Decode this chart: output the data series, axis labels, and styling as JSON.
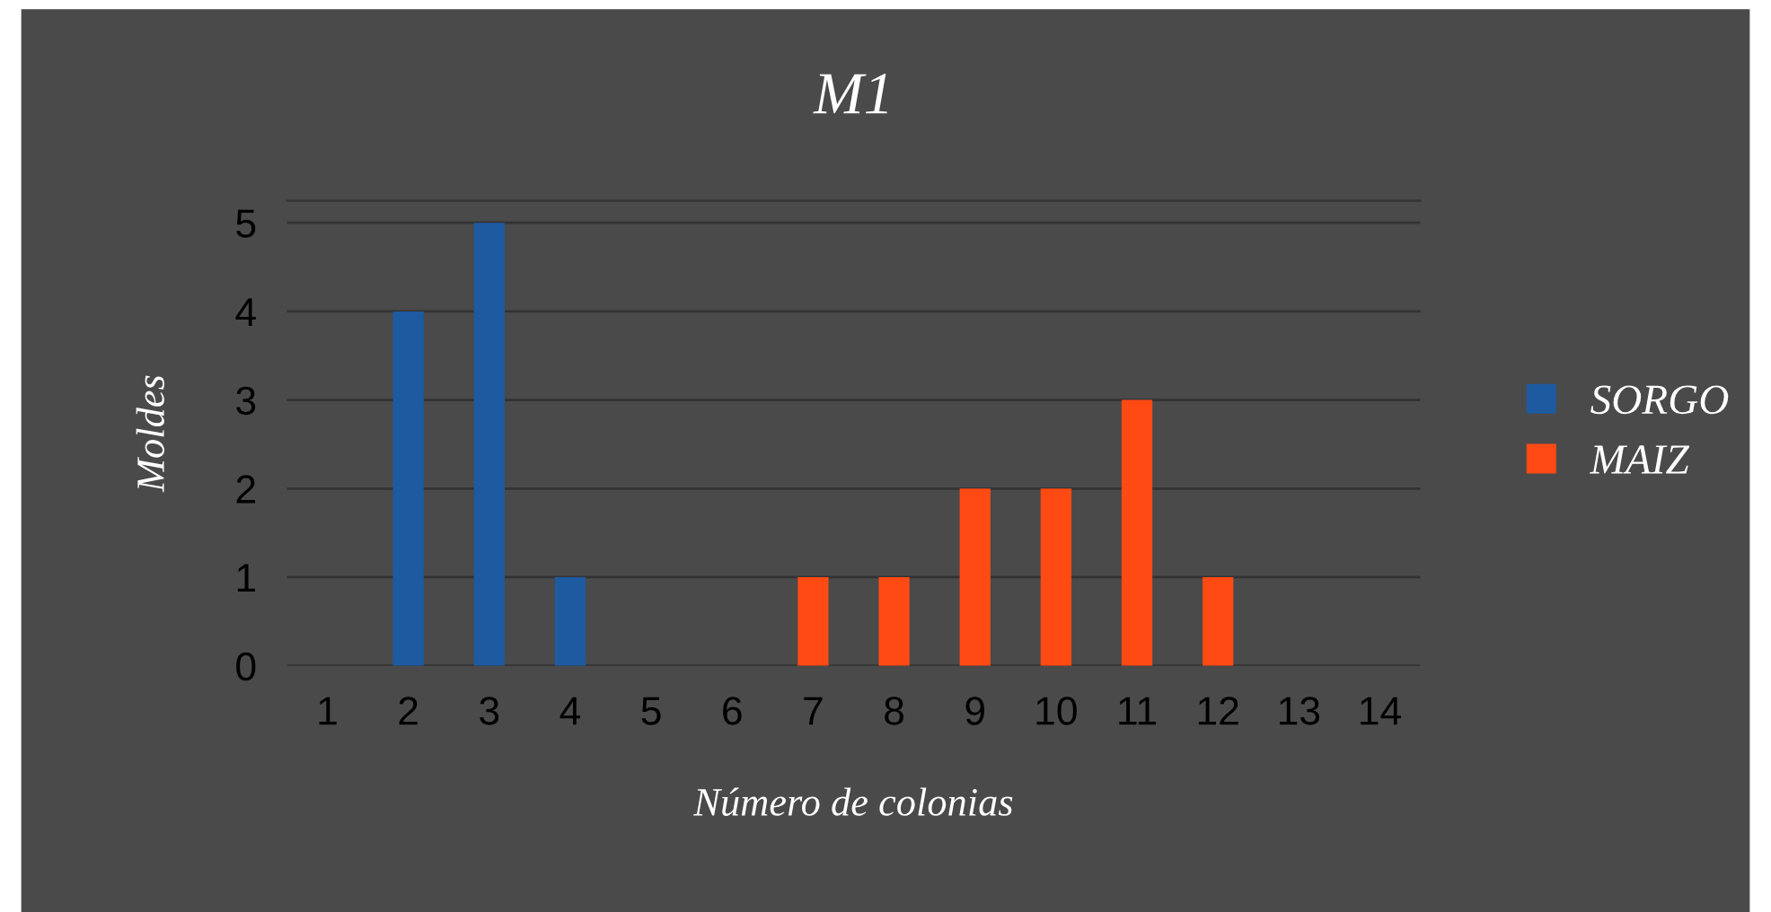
{
  "chart_data": {
    "type": "bar",
    "title": "M1",
    "xlabel": "Número de colonias",
    "ylabel": "Moldes",
    "categories": [
      "1",
      "2",
      "3",
      "4",
      "5",
      "6",
      "7",
      "8",
      "9",
      "10",
      "11",
      "12",
      "13",
      "14"
    ],
    "series": [
      {
        "name": "SORGO",
        "color": "#1e5aa0",
        "values": [
          null,
          4,
          5,
          1,
          null,
          null,
          null,
          null,
          null,
          null,
          null,
          null,
          null,
          null
        ]
      },
      {
        "name": "MAIZ",
        "color": "#ff4a14",
        "values": [
          null,
          null,
          null,
          null,
          null,
          null,
          1,
          1,
          2,
          2,
          3,
          1,
          null,
          null
        ]
      }
    ],
    "ylim": [
      0,
      5.25
    ],
    "yticks": [
      0,
      1,
      2,
      3,
      4,
      5
    ],
    "grid": "y",
    "legend": "right"
  }
}
